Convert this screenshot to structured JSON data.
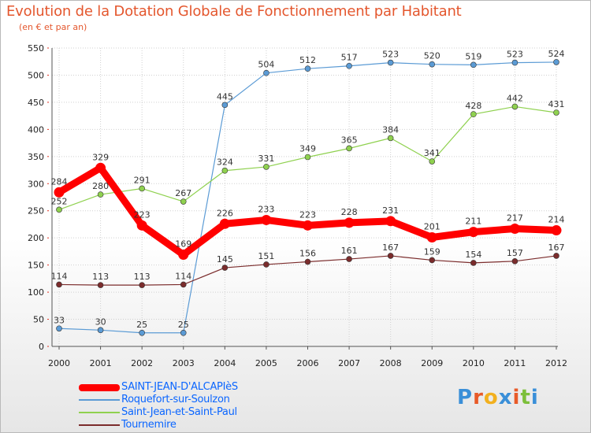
{
  "header": {
    "title": "Evolution de la Dotation Globale de Fonctionnement par Habitant",
    "subtitle": "(en € et par an)"
  },
  "logo": {
    "text": "Proxiti",
    "letter_colors": [
      "#3a8fd8",
      "#e85a28",
      "#f2b01e",
      "#3a8fd8",
      "#e85a28",
      "#7cbf3a",
      "#3a8fd8"
    ]
  },
  "chart_data": {
    "type": "line",
    "title": "Evolution de la Dotation Globale de Fonctionnement par Habitant",
    "subtitle": "(en € et par an)",
    "xlabel": "",
    "ylabel": "",
    "ylim": [
      0,
      550
    ],
    "yticks": [
      0,
      50,
      100,
      150,
      200,
      250,
      300,
      350,
      400,
      450,
      500,
      550
    ],
    "grid": true,
    "legend_position": "bottom-left",
    "x": [
      "2000",
      "2001",
      "2002",
      "2003",
      "2004",
      "2005",
      "2006",
      "2007",
      "2008",
      "2009",
      "2010",
      "2011",
      "2012"
    ],
    "series": [
      {
        "name": "SAINT-JEAN-D'ALCAPIèS",
        "color": "#ff0000",
        "values": [
          284,
          329,
          223,
          169,
          226,
          233,
          223,
          228,
          231,
          201,
          211,
          217,
          214
        ],
        "bold": true
      },
      {
        "name": "Roquefort-sur-Soulzon",
        "color": "#5b9bd5",
        "values": [
          33,
          30,
          25,
          25,
          445,
          504,
          512,
          517,
          523,
          520,
          519,
          523,
          524
        ],
        "bold": false
      },
      {
        "name": "Saint-Jean-et-Saint-Paul",
        "color": "#8fd14f",
        "values": [
          252,
          280,
          291,
          267,
          324,
          331,
          349,
          365,
          384,
          341,
          428,
          442,
          431
        ],
        "bold": false
      },
      {
        "name": "Tournemire",
        "color": "#7b2c2c",
        "values": [
          114,
          113,
          113,
          114,
          145,
          151,
          156,
          161,
          167,
          159,
          154,
          157,
          167
        ],
        "bold": false
      }
    ]
  }
}
